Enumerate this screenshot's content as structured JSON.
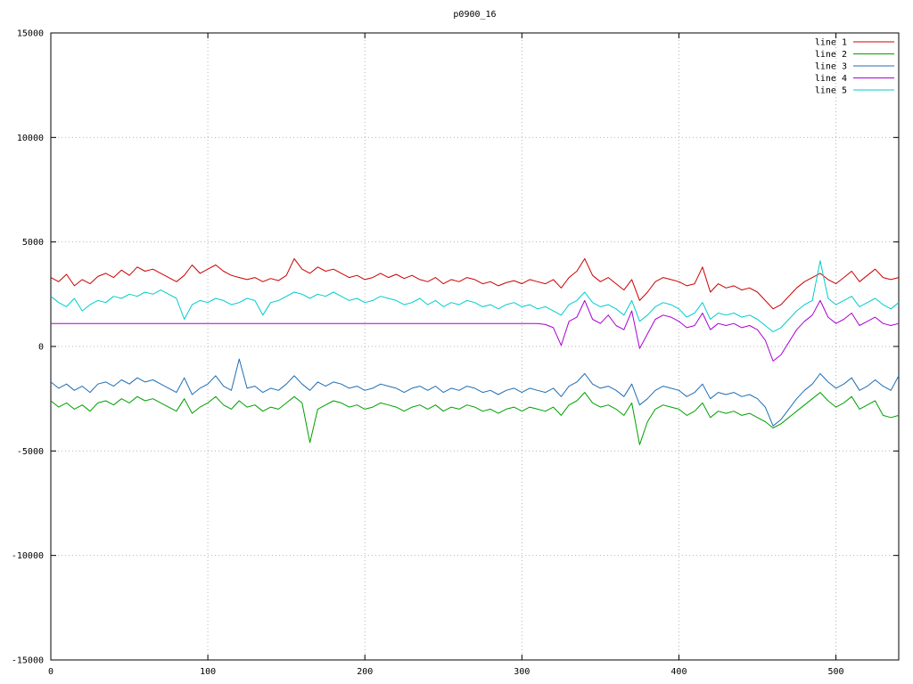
{
  "title": "p0900_16",
  "chart_data": {
    "type": "line",
    "title": "p0900_16",
    "xlabel": "",
    "ylabel": "",
    "xlim": [
      0,
      540
    ],
    "ylim": [
      -15000,
      15000
    ],
    "x_ticks": [
      0,
      100,
      200,
      300,
      400,
      500
    ],
    "y_ticks": [
      -15000,
      -10000,
      -5000,
      0,
      5000,
      10000,
      15000
    ],
    "grid": "dotted",
    "legend_position": "top-right-inside",
    "x_start": 0,
    "x_step": 5,
    "series": [
      {
        "name": "line 1",
        "color": "#cc0000",
        "values": [
          3300,
          3100,
          3450,
          2900,
          3200,
          3000,
          3350,
          3500,
          3300,
          3650,
          3400,
          3800,
          3600,
          3700,
          3500,
          3300,
          3100,
          3400,
          3900,
          3500,
          3700,
          3900,
          3600,
          3400,
          3300,
          3200,
          3300,
          3100,
          3250,
          3150,
          3400,
          4200,
          3700,
          3500,
          3800,
          3600,
          3700,
          3500,
          3300,
          3400,
          3200,
          3300,
          3500,
          3300,
          3450,
          3250,
          3400,
          3200,
          3100,
          3300,
          3000,
          3200,
          3100,
          3300,
          3200,
          3000,
          3100,
          2900,
          3050,
          3150,
          3000,
          3200,
          3100,
          3000,
          3200,
          2800,
          3300,
          3600,
          4200,
          3400,
          3100,
          3300,
          3000,
          2700,
          3200,
          2200,
          2600,
          3100,
          3300,
          3200,
          3100,
          2900,
          3000,
          3800,
          2600,
          3000,
          2800,
          2900,
          2700,
          2800,
          2600,
          2200,
          1800,
          2000,
          2400,
          2800,
          3100,
          3300,
          3500,
          3200,
          3000,
          3300,
          3600,
          3100,
          3400,
          3700,
          3300,
          3200,
          3300
        ]
      },
      {
        "name": "line 2",
        "color": "#00a000",
        "values": [
          -2600,
          -2900,
          -2700,
          -3000,
          -2800,
          -3100,
          -2700,
          -2600,
          -2800,
          -2500,
          -2700,
          -2400,
          -2600,
          -2500,
          -2700,
          -2900,
          -3100,
          -2500,
          -3200,
          -2900,
          -2700,
          -2400,
          -2800,
          -3000,
          -2600,
          -2900,
          -2800,
          -3100,
          -2900,
          -3000,
          -2700,
          -2400,
          -2700,
          -4600,
          -3000,
          -2800,
          -2600,
          -2700,
          -2900,
          -2800,
          -3000,
          -2900,
          -2700,
          -2800,
          -2900,
          -3100,
          -2900,
          -2800,
          -3000,
          -2800,
          -3100,
          -2900,
          -3000,
          -2800,
          -2900,
          -3100,
          -3000,
          -3200,
          -3000,
          -2900,
          -3100,
          -2900,
          -3000,
          -3100,
          -2900,
          -3300,
          -2800,
          -2600,
          -2200,
          -2700,
          -2900,
          -2800,
          -3000,
          -3300,
          -2700,
          -4700,
          -3600,
          -3000,
          -2800,
          -2900,
          -3000,
          -3300,
          -3100,
          -2700,
          -3400,
          -3100,
          -3200,
          -3100,
          -3300,
          -3200,
          -3400,
          -3600,
          -3900,
          -3700,
          -3400,
          -3100,
          -2800,
          -2500,
          -2200,
          -2600,
          -2900,
          -2700,
          -2400,
          -3000,
          -2800,
          -2600,
          -3300,
          -3400,
          -3300
        ]
      },
      {
        "name": "line 3",
        "color": "#1f6eb4",
        "values": [
          -1700,
          -2000,
          -1800,
          -2100,
          -1900,
          -2200,
          -1800,
          -1700,
          -1900,
          -1600,
          -1800,
          -1500,
          -1700,
          -1600,
          -1800,
          -2000,
          -2200,
          -1500,
          -2300,
          -2000,
          -1800,
          -1400,
          -1900,
          -2100,
          -600,
          -2000,
          -1900,
          -2200,
          -2000,
          -2100,
          -1800,
          -1400,
          -1800,
          -2100,
          -1700,
          -1900,
          -1700,
          -1800,
          -2000,
          -1900,
          -2100,
          -2000,
          -1800,
          -1900,
          -2000,
          -2200,
          -2000,
          -1900,
          -2100,
          -1900,
          -2200,
          -2000,
          -2100,
          -1900,
          -2000,
          -2200,
          -2100,
          -2300,
          -2100,
          -2000,
          -2200,
          -2000,
          -2100,
          -2200,
          -2000,
          -2400,
          -1900,
          -1700,
          -1300,
          -1800,
          -2000,
          -1900,
          -2100,
          -2400,
          -1800,
          -2800,
          -2500,
          -2100,
          -1900,
          -2000,
          -2100,
          -2400,
          -2200,
          -1800,
          -2500,
          -2200,
          -2300,
          -2200,
          -2400,
          -2300,
          -2500,
          -2900,
          -3800,
          -3500,
          -3000,
          -2500,
          -2100,
          -1800,
          -1300,
          -1700,
          -2000,
          -1800,
          -1500,
          -2100,
          -1900,
          -1600,
          -1900,
          -2100,
          -1400
        ]
      },
      {
        "name": "line 4",
        "color": "#aa00d4",
        "values": [
          1100,
          1100,
          1100,
          1100,
          1100,
          1100,
          1100,
          1100,
          1100,
          1100,
          1100,
          1100,
          1100,
          1100,
          1100,
          1100,
          1100,
          1100,
          1100,
          1100,
          1100,
          1100,
          1100,
          1100,
          1100,
          1100,
          1100,
          1100,
          1100,
          1100,
          1100,
          1100,
          1100,
          1100,
          1100,
          1100,
          1100,
          1100,
          1100,
          1100,
          1100,
          1100,
          1100,
          1100,
          1100,
          1100,
          1100,
          1100,
          1100,
          1100,
          1100,
          1100,
          1100,
          1100,
          1100,
          1100,
          1100,
          1100,
          1100,
          1100,
          1100,
          1100,
          1100,
          1050,
          900,
          50,
          1200,
          1400,
          2200,
          1300,
          1100,
          1500,
          1000,
          800,
          1700,
          -100,
          600,
          1300,
          1500,
          1400,
          1200,
          900,
          1000,
          1600,
          800,
          1100,
          1000,
          1100,
          900,
          1000,
          800,
          300,
          -700,
          -400,
          200,
          800,
          1200,
          1500,
          2200,
          1400,
          1100,
          1300,
          1600,
          1000,
          1200,
          1400,
          1100,
          1000,
          1100
        ]
      },
      {
        "name": "line 5",
        "color": "#00cccc",
        "values": [
          2400,
          2100,
          1900,
          2300,
          1700,
          2000,
          2200,
          2100,
          2400,
          2300,
          2500,
          2400,
          2600,
          2500,
          2700,
          2500,
          2300,
          1300,
          2000,
          2200,
          2100,
          2300,
          2200,
          2000,
          2100,
          2300,
          2200,
          1500,
          2100,
          2200,
          2400,
          2600,
          2500,
          2300,
          2500,
          2400,
          2600,
          2400,
          2200,
          2300,
          2100,
          2200,
          2400,
          2300,
          2200,
          2000,
          2100,
          2300,
          2000,
          2200,
          1900,
          2100,
          2000,
          2200,
          2100,
          1900,
          2000,
          1800,
          2000,
          2100,
          1900,
          2000,
          1800,
          1900,
          1700,
          1500,
          2000,
          2200,
          2600,
          2100,
          1900,
          2000,
          1800,
          1500,
          2200,
          1200,
          1500,
          1900,
          2100,
          2000,
          1800,
          1400,
          1600,
          2100,
          1300,
          1600,
          1500,
          1600,
          1400,
          1500,
          1300,
          1000,
          700,
          900,
          1300,
          1700,
          2000,
          2200,
          4100,
          2300,
          2000,
          2200,
          2400,
          1900,
          2100,
          2300,
          2000,
          1800,
          2100
        ]
      }
    ]
  },
  "style": {
    "grid_color": "#b5b5b5",
    "border_color": "#000000",
    "background": "#ffffff"
  }
}
